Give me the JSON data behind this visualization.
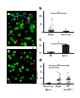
{
  "top_right": {
    "ylabel": "T cell motility coefficient\n(μm²/min)",
    "categories": [
      "Plaque",
      "Interacting"
    ],
    "sig_text": "**",
    "ylim": [
      0,
      130
    ]
  },
  "mid_right": {
    "ylabel": "Arrest\ncoefficient",
    "categories": [
      "PBS",
      "Apoe-/-"
    ],
    "bar_values": [
      0.05,
      0.52
    ],
    "bar_errors": [
      0.02,
      0.06
    ],
    "sig_text": "**",
    "ylim": [
      0,
      0.7
    ],
    "bar_colors": [
      "#aaaaaa",
      "#222222"
    ]
  },
  "bottom_right": {
    "ylabel": "T cell motility coefficient\n(μm²/min)",
    "categories": [
      "Interacting\nSpleen",
      "Plaque",
      "OTE\n(non-APC)"
    ],
    "sig_text": "*",
    "sig2_text": "**",
    "ylim": [
      0,
      70
    ]
  },
  "bg_color": "#ffffff"
}
